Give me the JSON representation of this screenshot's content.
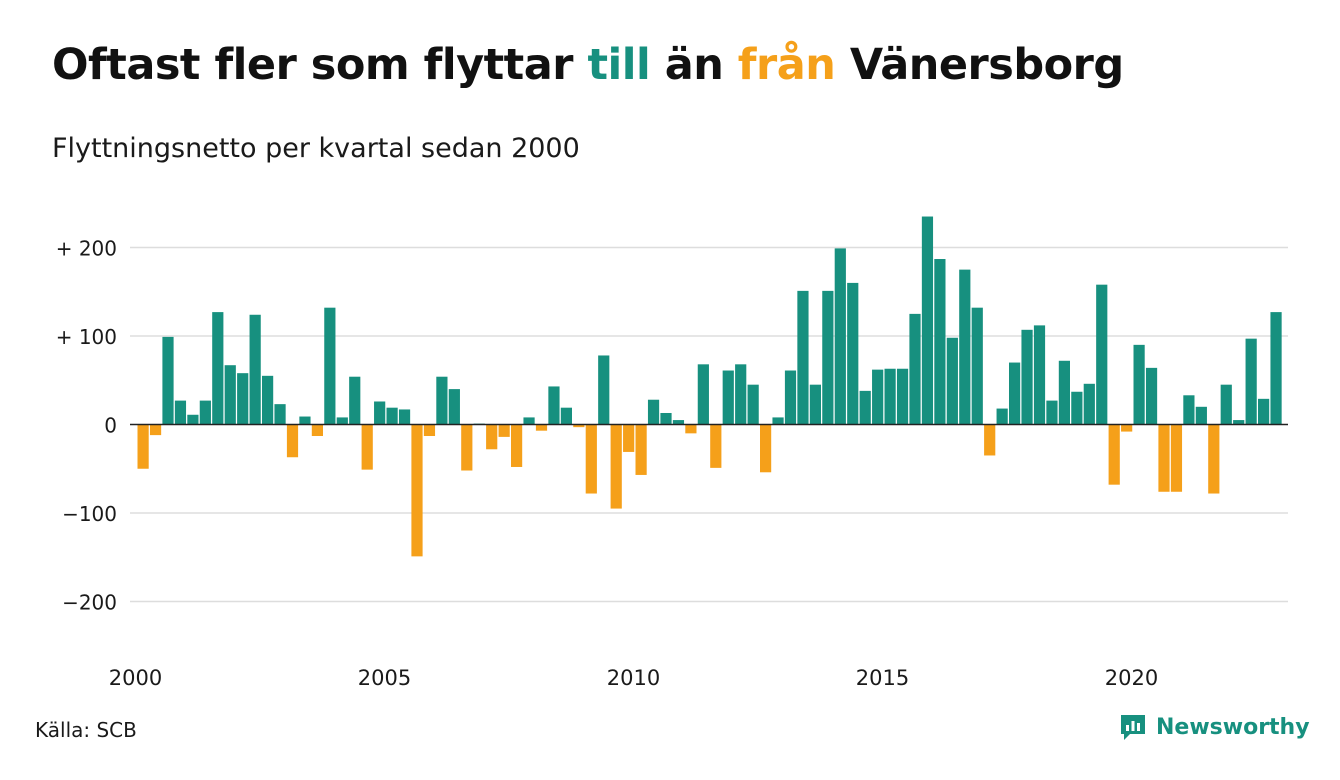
{
  "title": {
    "part1": "Oftast fler som flyttar ",
    "till": "till",
    "part2": " än ",
    "fran": "från",
    "part3": " Vänersborg"
  },
  "subtitle": "Flyttningsnetto per kvartal sedan 2000",
  "source": "Källa: SCB",
  "brand": {
    "name": "Newsworthy",
    "icon": "newsworthy-logo-icon"
  },
  "colors": {
    "positive": "#17907f",
    "negative": "#f5a01a",
    "grid": "#dddddd",
    "axis": "#222222"
  },
  "chart_data": {
    "type": "bar",
    "start_year": 2000,
    "periods_per_year": 4,
    "ylim": [
      -250,
      250
    ],
    "yticks": [
      {
        "value": 200,
        "label": "+ 200"
      },
      {
        "value": 100,
        "label": "+ 100"
      },
      {
        "value": 0,
        "label": "0"
      },
      {
        "value": -100,
        "label": "−100"
      },
      {
        "value": -200,
        "label": "−200"
      }
    ],
    "xticks": [
      "2000",
      "2005",
      "2010",
      "2015",
      "2020"
    ],
    "grid": true,
    "values": [
      -50,
      -12,
      99,
      27,
      11,
      27,
      127,
      67,
      58,
      124,
      55,
      23,
      -37,
      9,
      -13,
      132,
      8,
      54,
      -51,
      26,
      19,
      17,
      -149,
      -13,
      54,
      40,
      -52,
      1,
      -28,
      -14,
      -48,
      8,
      -7,
      43,
      19,
      -3,
      -78,
      78,
      -95,
      -31,
      -57,
      28,
      13,
      5,
      -10,
      68,
      -49,
      61,
      68,
      45,
      -54,
      8,
      61,
      151,
      45,
      151,
      199,
      160,
      38,
      62,
      63,
      63,
      125,
      235,
      187,
      98,
      175,
      132,
      -35,
      18,
      70,
      107,
      112,
      27,
      72,
      37,
      46,
      158,
      -68,
      -8,
      90,
      64,
      -76,
      -76,
      33,
      20,
      -78,
      45,
      5,
      97,
      29,
      127
    ]
  }
}
